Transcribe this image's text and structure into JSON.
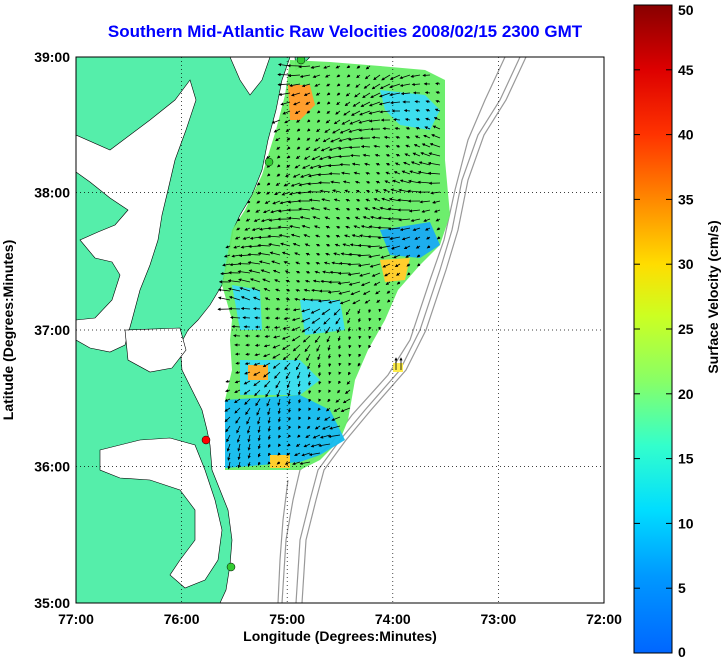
{
  "title": "Southern Mid-Atlantic Raw Velocities 2008/02/15 2300 GMT",
  "x_axis": {
    "label": "Longitude (Degrees:Minutes)",
    "ticks": [
      "77:00",
      "76:00",
      "75:00",
      "74:00",
      "73:00",
      "72:00"
    ]
  },
  "y_axis": {
    "label": "Latitude (Degrees:Minutes)",
    "ticks": [
      "35:00",
      "36:00",
      "37:00",
      "38:00",
      "39:00"
    ]
  },
  "colorbar": {
    "label": "Surface Velocity (cm/s)",
    "ticks": [
      "0",
      "5",
      "10",
      "15",
      "20",
      "25",
      "30",
      "35",
      "40",
      "45",
      "50"
    ],
    "min": 0,
    "max": 50
  },
  "colors": {
    "land": "#55eeaa",
    "title": "#0000ff",
    "station_green": "#33cc33",
    "station_red": "#ff0000",
    "bathymetry": "#999999"
  }
}
